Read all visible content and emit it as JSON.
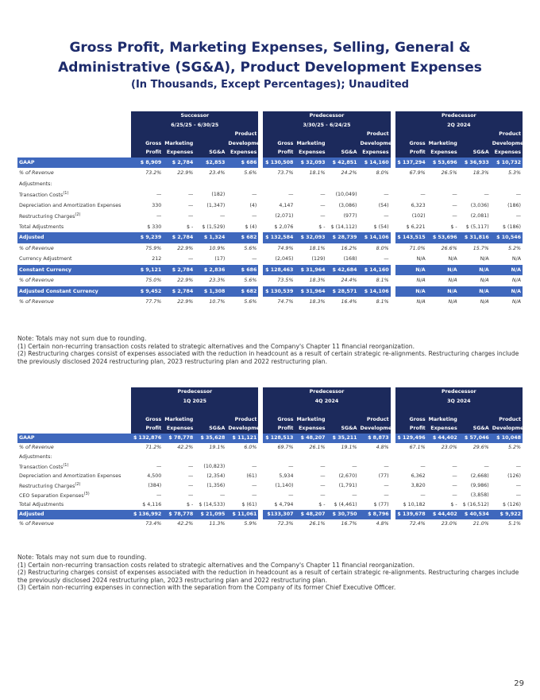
{
  "title": "Gross Profit, Marketing Expenses, Selling, General & Administrative (SG&A), Product Development Expenses",
  "subtitle": "(In Thousands, Except Percentages); Unaudited",
  "tables": [
    {
      "groups": [
        {
          "label": "Successor",
          "period": "6/25/25 - 6/30/25",
          "columns": [
            [
              "Gross",
              "Profit"
            ],
            [
              "Marketing",
              "Expenses"
            ],
            [
              "SG&A"
            ],
            [
              "Product",
              "Development",
              "Expenses"
            ]
          ]
        },
        {
          "label": "Predecessor",
          "period": "3/30/25 - 6/24/25",
          "columns": [
            [
              "Gross",
              "Profit"
            ],
            [
              "Marketing",
              "Expenses"
            ],
            [
              "SG&A"
            ],
            [
              "Product",
              "Development",
              "Expenses"
            ]
          ]
        },
        {
          "label": "Predecessor",
          "period": "2Q 2024",
          "columns": [
            [
              "Gross",
              "Profit"
            ],
            [
              "Marketing",
              "Expenses"
            ],
            [
              "SG&A"
            ],
            [
              "Product",
              "Development",
              "Expenses"
            ]
          ]
        }
      ],
      "rows": [
        {
          "label": "GAAP",
          "highlight": true,
          "cells": [
            "$ 8,909",
            "$ 2,784",
            "$2,853",
            "$ 686",
            "$ 130,508",
            "$ 32,093",
            "$ 42,851",
            "$ 14,160",
            "$ 137,294",
            "$ 53,696",
            "$ 36,933",
            "$ 10,732"
          ]
        },
        {
          "label": "% of Revenue",
          "italic": true,
          "cells": [
            "73.2%",
            "22.9%",
            "23.4%",
            "5.6%",
            "73.7%",
            "18.1%",
            "24.2%",
            "8.0%",
            "67.9%",
            "26.5%",
            "18.3%",
            "5.3%"
          ]
        },
        {
          "label": "Adjustments:"
        },
        {
          "label": "Transaction Costs",
          "note": "(1)",
          "cells": [
            "—",
            "—",
            "(182)",
            "—",
            "—",
            "—",
            "(10,049)",
            "—",
            "—",
            "—",
            "—",
            "—"
          ]
        },
        {
          "label": "Depreciation and Amortization Expenses",
          "cells": [
            "330",
            "—",
            "(1,347)",
            "(4)",
            "4,147",
            "—",
            "(3,086)",
            "(54)",
            "6,323",
            "—",
            "(3,036)",
            "(186)"
          ]
        },
        {
          "label": "Restructuring Charges",
          "note": "(2)",
          "cells": [
            "—",
            "—",
            "—",
            "—",
            "(2,071)",
            "—",
            "(977)",
            "—",
            "(102)",
            "—",
            "(2,081)",
            "—"
          ]
        },
        {
          "label": "Total Adjustments",
          "cells": [
            "$ 330",
            "$ -",
            "$ (1,529)",
            "$ (4)",
            "$ 2,076",
            "$ -",
            "$ (14,112)",
            "$ (54)",
            "$ 6,221",
            "$ -",
            "$ (5,117)",
            "$ (186)"
          ]
        },
        {
          "label": "Adjusted",
          "highlight": true,
          "cells": [
            "$ 9,239",
            "$ 2,784",
            "$ 1,324",
            "$ 682",
            "$ 132,584",
            "$ 32,093",
            "$ 28,739",
            "$ 14,106",
            "$ 143,515",
            "$ 53,696",
            "$ 31,816",
            "$ 10,546"
          ]
        },
        {
          "label": "% of Revenue",
          "italic": true,
          "cells": [
            "75.9%",
            "22.9%",
            "10.9%",
            "5.6%",
            "74.9%",
            "18.1%",
            "16.2%",
            "8.0%",
            "71.0%",
            "26.6%",
            "15.7%",
            "5.2%"
          ]
        },
        {
          "label": "Currency Adjustment",
          "cells": [
            "212",
            "—",
            "(17)",
            "—",
            "(2,045)",
            "(129)",
            "(168)",
            "—",
            "N/A",
            "N/A",
            "N/A",
            "N/A"
          ]
        },
        {
          "label": "Constant Currency",
          "highlight": true,
          "cells": [
            "$ 9,121",
            "$ 2,784",
            "$ 2,836",
            "$ 686",
            "$ 128,463",
            "$ 31,964",
            "$ 42,684",
            "$ 14,160",
            "N/A",
            "N/A",
            "N/A",
            "N/A"
          ]
        },
        {
          "label": "% of Revenue",
          "italic": true,
          "cells": [
            "75.0%",
            "22.9%",
            "23.3%",
            "5.6%",
            "73.5%",
            "18.3%",
            "24.4%",
            "8.1%",
            "N/A",
            "N/A",
            "N/A",
            "N/A"
          ]
        },
        {
          "label": "Adjusted Constant Currency",
          "highlight": true,
          "cells": [
            "$ 9,452",
            "$ 2,784",
            "$ 1,308",
            "$ 682",
            "$ 130,539",
            "$ 31,964",
            "$ 28,571",
            "$ 14,106",
            "N/A",
            "N/A",
            "N/A",
            "N/A"
          ]
        },
        {
          "label": "% of Revenue",
          "italic": true,
          "cells": [
            "77.7%",
            "22.9%",
            "10.7%",
            "5.6%",
            "74.7%",
            "18.3%",
            "16.4%",
            "8.1%",
            "N/A",
            "N/A",
            "N/A",
            "N/A"
          ]
        }
      ],
      "notes": [
        "Note: Totals may not sum due to rounding.",
        "(1)  Certain non-recurring transaction costs related to strategic alternatives and the Company's Chapter 11 financial reorganization.",
        "(2) Restructuring charges consist of expenses associated with the reduction in headcount as a result of certain strategic re-alignments. Restructuring charges include the previously disclosed 2024 restructuring plan, 2023 restructuring plan and 2022 restructuring plan."
      ]
    },
    {
      "groups": [
        {
          "label": "Predecessor",
          "period": "1Q 2025",
          "columns": [
            [
              "Gross",
              "Profit"
            ],
            [
              "Marketing",
              "Expenses"
            ],
            [
              "SG&A"
            ],
            [
              "Product",
              "Development"
            ]
          ]
        },
        {
          "label": "Predecessor",
          "period": "4Q 2024",
          "columns": [
            [
              "Gross",
              "Profit"
            ],
            [
              "Marketing",
              "Expenses"
            ],
            [
              "SG&A"
            ],
            [
              "Product",
              "Development"
            ]
          ]
        },
        {
          "label": "Predecessor",
          "period": "3Q 2024",
          "columns": [
            [
              "Gross",
              "Profit"
            ],
            [
              "Marketing",
              "Expenses"
            ],
            [
              "SG&A"
            ],
            [
              "Product",
              "Development"
            ]
          ]
        }
      ],
      "rows": [
        {
          "label": "GAAP",
          "highlight": true,
          "cells": [
            "$ 132,876",
            "$ 78,778",
            "$ 35,628",
            "$ 11,121",
            "$ 128,513",
            "$ 48,207",
            "$ 35,211",
            "$ 8,873",
            "$ 129,496",
            "$ 44,402",
            "$ 57,046",
            "$ 10,048"
          ]
        },
        {
          "label": "% of Revenue",
          "italic": true,
          "cells": [
            "71.2%",
            "42.2%",
            "19.1%",
            "6.0%",
            "69.7%",
            "26.1%",
            "19.1%",
            "4.8%",
            "67.1%",
            "23.0%",
            "29.6%",
            "5.2%"
          ]
        },
        {
          "label": "Adjustments:"
        },
        {
          "label": "Transaction Costs",
          "note": "(1)",
          "cells": [
            "—",
            "—",
            "(10,823)",
            "—",
            "—",
            "—",
            "—",
            "—",
            "—",
            "—",
            "—",
            "—"
          ]
        },
        {
          "label": "Depreciation and Amortization Expenses",
          "cells": [
            "4,500",
            "—",
            "(2,354)",
            "(61)",
            "5,934",
            "—",
            "(2,670)",
            "(77)",
            "6,362",
            "—",
            "(2,668)",
            "(126)"
          ]
        },
        {
          "label": "Restructuring Charges",
          "note": "(2)",
          "cells": [
            "(384)",
            "—",
            "(1,356)",
            "—",
            "(1,140)",
            "—",
            "(1,791)",
            "—",
            "3,820",
            "—",
            "(9,986)",
            "—"
          ]
        },
        {
          "label": "CEO Separation Expenses",
          "note": "(3)",
          "cells": [
            "—",
            "—",
            "—",
            "—",
            "—",
            "—",
            "—",
            "—",
            "—",
            "—",
            "(3,858)",
            "—"
          ]
        },
        {
          "label": "Total Adjustments",
          "cells": [
            "$ 4,116",
            "$ -",
            "$ (14,533)",
            "$ (61)",
            "$ 4,794",
            "$ -",
            "$ (4,461)",
            "$ (77)",
            "$ 10,182",
            "$ -",
            "$ (16,512)",
            "$ (126)"
          ]
        },
        {
          "label": "Adjusted",
          "highlight": true,
          "cells": [
            "$ 136,992",
            "$ 78,778",
            "$ 21,095",
            "$ 11,061",
            "$133,307",
            "$ 48,207",
            "$ 30,750",
            "$ 8,796",
            "$ 139,678",
            "$ 44,402",
            "$ 40,534",
            "$ 9,922"
          ]
        },
        {
          "label": "% of Revenue",
          "italic": true,
          "cells": [
            "73.4%",
            "42.2%",
            "11.3%",
            "5.9%",
            "72.3%",
            "26.1%",
            "16.7%",
            "4.8%",
            "72.4%",
            "23.0%",
            "21.0%",
            "5.1%"
          ]
        }
      ],
      "notes": [
        "Note: Totals may not sum due to rounding.",
        "(1)  Certain non-recurring transaction costs related to strategic alternatives and the Company's Chapter 11 financial reorganization.",
        "(2) Restructuring charges consist of expenses associated with the reduction in headcount as a result of certain strategic re-alignments. Restructuring charges include the previously disclosed 2024 restructuring plan, 2023 restructuring plan and 2022 restructuring plan.",
        "(3) Certain non-recurring expenses in connection with the separation from the Company of its former Chief Executive Officer."
      ]
    }
  ],
  "page_number": "29"
}
